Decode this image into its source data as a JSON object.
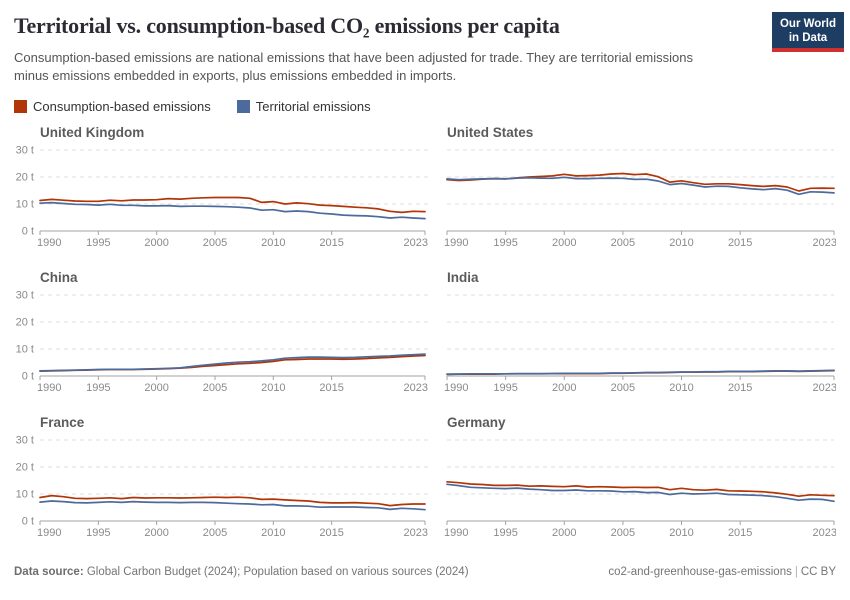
{
  "header": {
    "title": "Territorial vs. consumption-based CO₂ emissions per capita",
    "subtitle": "Consumption-based emissions are national emissions that have been adjusted for trade. They are territorial emissions minus emissions embedded in exports, plus emissions embedded in imports.",
    "logo": {
      "line1": "Our World",
      "line2": "in Data",
      "bg_color": "#1d3d63",
      "accent_color": "#cf3130"
    }
  },
  "legend": {
    "items": [
      {
        "key": "consumption",
        "label": "Consumption-based emissions",
        "color": "#b13507"
      },
      {
        "key": "territorial",
        "label": "Territorial emissions",
        "color": "#4c6a9c"
      }
    ]
  },
  "chart_data": {
    "type": "line",
    "unit": "t",
    "x_start": 1990,
    "x_end": 2023,
    "x_ticks": [
      1990,
      1995,
      2000,
      2005,
      2010,
      2015,
      2023
    ],
    "y_ticks": [
      0,
      10,
      20,
      30
    ],
    "y_tick_suffix": " t",
    "ylim": [
      0,
      33
    ],
    "grid": "dashed horizontal lines at 10, 20, 30",
    "legend_position": "top-left above facets",
    "colors": {
      "consumption": "#b13507",
      "territorial": "#4c6a9c"
    },
    "series_names": [
      "Consumption-based emissions",
      "Territorial emissions"
    ],
    "facets": [
      {
        "title": "United Kingdom",
        "consumption": [
          11.3,
          11.7,
          11.4,
          11.1,
          11.0,
          11.0,
          11.4,
          11.2,
          11.5,
          11.5,
          11.6,
          12.0,
          11.8,
          12.1,
          12.3,
          12.4,
          12.4,
          12.4,
          12.1,
          10.6,
          10.9,
          10.0,
          10.4,
          10.1,
          9.6,
          9.4,
          9.1,
          8.8,
          8.6,
          8.2,
          7.3,
          6.9,
          7.3,
          7.2
        ],
        "territorial": [
          10.3,
          10.5,
          10.2,
          9.9,
          9.8,
          9.6,
          9.9,
          9.5,
          9.5,
          9.3,
          9.3,
          9.4,
          9.1,
          9.2,
          9.2,
          9.1,
          9.0,
          8.8,
          8.5,
          7.7,
          7.9,
          7.2,
          7.4,
          7.2,
          6.6,
          6.3,
          5.9,
          5.7,
          5.6,
          5.3,
          4.8,
          5.1,
          4.8,
          4.6
        ]
      },
      {
        "title": "United States",
        "consumption": [
          19.0,
          18.7,
          18.9,
          19.2,
          19.4,
          19.3,
          19.7,
          20.0,
          20.2,
          20.4,
          21.0,
          20.4,
          20.5,
          20.7,
          21.1,
          21.3,
          20.9,
          21.1,
          20.1,
          18.1,
          18.6,
          17.9,
          17.3,
          17.5,
          17.5,
          17.2,
          16.8,
          16.5,
          16.8,
          16.3,
          14.8,
          15.8,
          15.9,
          15.8
        ],
        "territorial": [
          19.3,
          19.0,
          19.2,
          19.3,
          19.4,
          19.3,
          19.6,
          19.7,
          19.6,
          19.5,
          19.9,
          19.4,
          19.4,
          19.5,
          19.6,
          19.5,
          19.1,
          19.2,
          18.5,
          17.2,
          17.6,
          17.0,
          16.3,
          16.6,
          16.5,
          16.0,
          15.6,
          15.3,
          15.7,
          15.1,
          13.6,
          14.5,
          14.4,
          14.1
        ]
      },
      {
        "title": "China",
        "consumption": [
          1.8,
          1.9,
          2.0,
          2.1,
          2.2,
          2.3,
          2.4,
          2.4,
          2.4,
          2.5,
          2.6,
          2.7,
          2.9,
          3.2,
          3.6,
          3.9,
          4.2,
          4.5,
          4.7,
          5.0,
          5.4,
          6.0,
          6.1,
          6.3,
          6.3,
          6.3,
          6.2,
          6.3,
          6.5,
          6.7,
          6.9,
          7.2,
          7.4,
          7.6
        ],
        "territorial": [
          1.9,
          2.0,
          2.1,
          2.2,
          2.3,
          2.4,
          2.5,
          2.5,
          2.5,
          2.6,
          2.7,
          2.8,
          3.0,
          3.5,
          4.0,
          4.4,
          4.8,
          5.1,
          5.3,
          5.6,
          6.0,
          6.6,
          6.8,
          7.0,
          7.0,
          6.9,
          6.8,
          6.9,
          7.1,
          7.3,
          7.4,
          7.7,
          7.9,
          8.1
        ]
      },
      {
        "title": "India",
        "consumption": [
          0.6,
          0.7,
          0.7,
          0.7,
          0.7,
          0.8,
          0.8,
          0.8,
          0.8,
          0.9,
          0.9,
          0.9,
          0.9,
          0.9,
          1.0,
          1.0,
          1.1,
          1.2,
          1.2,
          1.3,
          1.4,
          1.4,
          1.5,
          1.5,
          1.6,
          1.6,
          1.6,
          1.7,
          1.8,
          1.8,
          1.7,
          1.8,
          1.9,
          2.0
        ],
        "territorial": [
          0.7,
          0.7,
          0.8,
          0.8,
          0.8,
          0.8,
          0.9,
          0.9,
          0.9,
          0.9,
          1.0,
          1.0,
          1.0,
          1.0,
          1.1,
          1.1,
          1.2,
          1.3,
          1.3,
          1.4,
          1.5,
          1.5,
          1.6,
          1.6,
          1.7,
          1.7,
          1.7,
          1.8,
          1.9,
          1.9,
          1.8,
          1.9,
          2.0,
          2.1
        ]
      },
      {
        "title": "France",
        "consumption": [
          8.7,
          9.4,
          9.0,
          8.4,
          8.3,
          8.4,
          8.6,
          8.3,
          8.7,
          8.5,
          8.6,
          8.6,
          8.5,
          8.6,
          8.7,
          8.8,
          8.7,
          8.8,
          8.6,
          8.0,
          8.1,
          7.8,
          7.6,
          7.4,
          6.9,
          6.7,
          6.7,
          6.8,
          6.6,
          6.4,
          5.7,
          6.1,
          6.3,
          6.3
        ],
        "territorial": [
          7.0,
          7.4,
          7.2,
          6.8,
          6.7,
          6.9,
          7.1,
          6.9,
          7.2,
          7.0,
          6.9,
          6.9,
          6.8,
          6.9,
          6.9,
          6.8,
          6.6,
          6.4,
          6.3,
          6.0,
          6.1,
          5.6,
          5.6,
          5.5,
          5.1,
          5.2,
          5.2,
          5.2,
          5.0,
          4.9,
          4.3,
          4.7,
          4.5,
          4.2
        ]
      },
      {
        "title": "Germany",
        "consumption": [
          14.5,
          14.2,
          13.7,
          13.5,
          13.2,
          13.2,
          13.3,
          12.9,
          13.0,
          12.8,
          12.7,
          13.0,
          12.6,
          12.7,
          12.6,
          12.4,
          12.5,
          12.4,
          12.5,
          11.6,
          12.1,
          11.6,
          11.4,
          11.7,
          11.2,
          11.1,
          11.0,
          10.8,
          10.4,
          9.9,
          9.2,
          9.7,
          9.5,
          9.4
        ],
        "territorial": [
          13.6,
          13.1,
          12.5,
          12.3,
          12.1,
          12.0,
          12.2,
          11.8,
          11.6,
          11.3,
          11.3,
          11.5,
          11.2,
          11.2,
          11.1,
          10.8,
          10.9,
          10.5,
          10.6,
          9.8,
          10.3,
          10.0,
          10.1,
          10.3,
          9.8,
          9.7,
          9.6,
          9.4,
          9.0,
          8.4,
          7.7,
          8.1,
          8.0,
          7.3
        ]
      }
    ]
  },
  "footer": {
    "source_label": "Data source:",
    "source_text": " Global Carbon Budget (2024); Population based on various sources (2024)",
    "slug": "co2-and-greenhouse-gas-emissions",
    "divider": "|",
    "license": "CC BY"
  }
}
